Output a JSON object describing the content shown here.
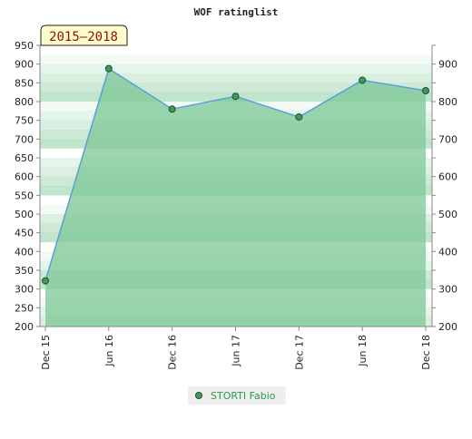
{
  "chart_data": {
    "type": "area",
    "title": "WOF ratinglist",
    "period_label": "2015–2018",
    "xlabel": "",
    "ylabel": "",
    "categories": [
      "Dec 15",
      "Jun 16",
      "Dec 16",
      "Jun 17",
      "Dec 17",
      "Jun 18",
      "Dec 18"
    ],
    "series": [
      {
        "name": "STORTI Fabio",
        "values": [
          322,
          888,
          780,
          814,
          759,
          857,
          829
        ]
      }
    ],
    "ylim": [
      200,
      950
    ],
    "yticks_left": [
      200,
      250,
      300,
      350,
      400,
      450,
      500,
      550,
      600,
      650,
      700,
      750,
      800,
      850,
      900,
      950
    ],
    "yticks_right": [
      200,
      300,
      400,
      500,
      600,
      700,
      800,
      900
    ],
    "grid": false,
    "legend_position": "bottom-center",
    "colors": {
      "line": "#5aa0d8",
      "area": "#7cc795",
      "marker": "#3e9a5e",
      "legend_text": "#2a9d4a",
      "period_bg": "#fffccc",
      "period_text": "#8a1010"
    }
  }
}
